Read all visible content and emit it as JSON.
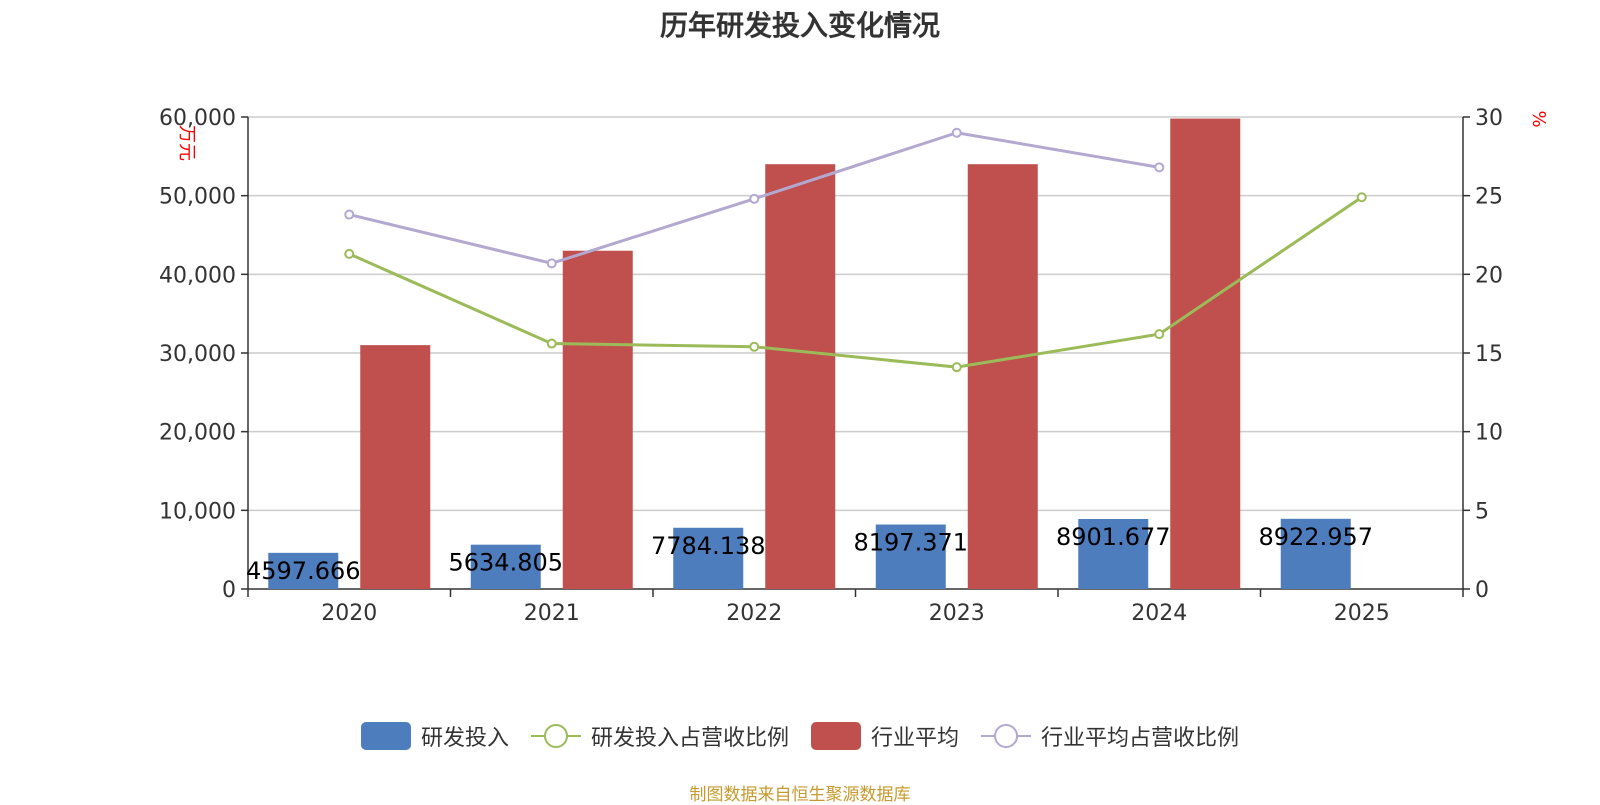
{
  "title": "历年研发投入变化情况",
  "source": "制图数据来自恒生聚源数据库",
  "colors": {
    "rd": "#4e7dbe",
    "rd_ratio": "#9bbb59",
    "industry": "#c0504d",
    "industry_ratio": "#b3a8d0",
    "axis_unit": "#ff0000",
    "text": "#333333",
    "grid": "#cccccc"
  },
  "legend": [
    {
      "name": "研发投入",
      "type": "bar",
      "color": "#4e7dbe"
    },
    {
      "name": "研发投入占营收比例",
      "type": "line",
      "color": "#9bbb59"
    },
    {
      "name": "行业平均",
      "type": "bar",
      "color": "#c0504d"
    },
    {
      "name": "行业平均占营收比例",
      "type": "line",
      "color": "#b3a8d0"
    }
  ],
  "chart_data": {
    "type": "bar",
    "title": "历年研发投入变化情况",
    "categories": [
      "2020",
      "2021",
      "2022",
      "2023",
      "2024",
      "2025"
    ],
    "y_left": {
      "unit": "万元",
      "ylim": [
        0,
        60000
      ],
      "ticks": [
        0,
        10000,
        20000,
        30000,
        40000,
        50000,
        60000
      ],
      "tick_labels": [
        "0",
        "10,000",
        "20,000",
        "30,000",
        "40,000",
        "50,000",
        "60,000"
      ]
    },
    "y_right": {
      "unit": "%",
      "ylim": [
        0,
        30
      ],
      "ticks": [
        0,
        5,
        10,
        15,
        20,
        25,
        30
      ],
      "tick_labels": [
        "0",
        "5",
        "10",
        "15",
        "20",
        "25",
        "30"
      ]
    },
    "grid": true,
    "legend_position": "bottom",
    "series": [
      {
        "name": "研发投入",
        "type": "bar",
        "axis": "left",
        "values": [
          4597.666,
          5634.805,
          7784.138,
          8197.371,
          8901.677,
          8922.957
        ],
        "labels": [
          "4597.666",
          "5634.805",
          "7784.138",
          "8197.371",
          "8901.677",
          "8922.957"
        ]
      },
      {
        "name": "行业平均",
        "type": "bar",
        "axis": "left",
        "values": [
          31000,
          43000,
          54000,
          54000,
          59800,
          null
        ]
      },
      {
        "name": "研发投入占营收比例",
        "type": "line",
        "axis": "right",
        "values": [
          21.3,
          15.6,
          15.4,
          14.1,
          16.2,
          24.9
        ]
      },
      {
        "name": "行业平均占营收比例",
        "type": "line",
        "axis": "right",
        "values": [
          23.8,
          20.7,
          24.8,
          29.0,
          26.8,
          null
        ]
      }
    ]
  }
}
